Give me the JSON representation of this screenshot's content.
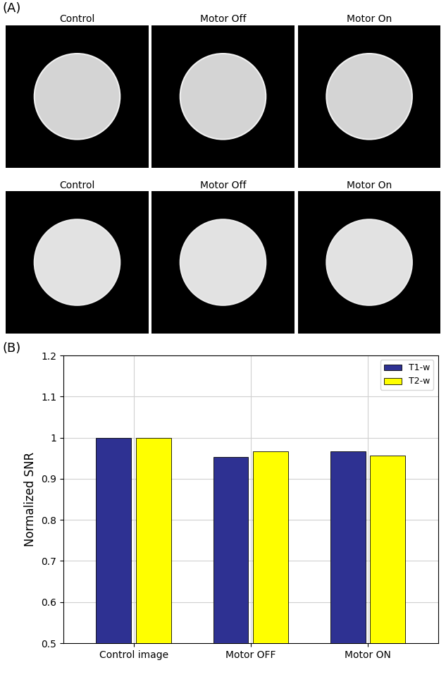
{
  "panel_a": {
    "label": "(A)",
    "rows": [
      {
        "titles": [
          "Control",
          "Motor Off",
          "Motor On"
        ]
      },
      {
        "titles": [
          "Control",
          "Motor Off",
          "Motor On"
        ]
      }
    ]
  },
  "panel_b": {
    "label": "(B)"
  },
  "chart_data": {
    "type": "bar",
    "y_label": "Normalized SNR",
    "categories": [
      "Control image",
      "Motor OFF",
      "Motor ON"
    ],
    "series": [
      {
        "name": "T1-w",
        "color": "#2e3192",
        "values": [
          1.0,
          0.953,
          0.967
        ]
      },
      {
        "name": "T2-w",
        "color": "#ffff00",
        "values": [
          1.0,
          0.967,
          0.957
        ]
      }
    ],
    "ylim": [
      0.5,
      1.2
    ],
    "yticks": [
      0.5,
      0.6,
      0.7,
      0.8,
      0.9,
      1,
      1.1,
      1.2
    ],
    "grid": true,
    "legend": "upper right"
  }
}
